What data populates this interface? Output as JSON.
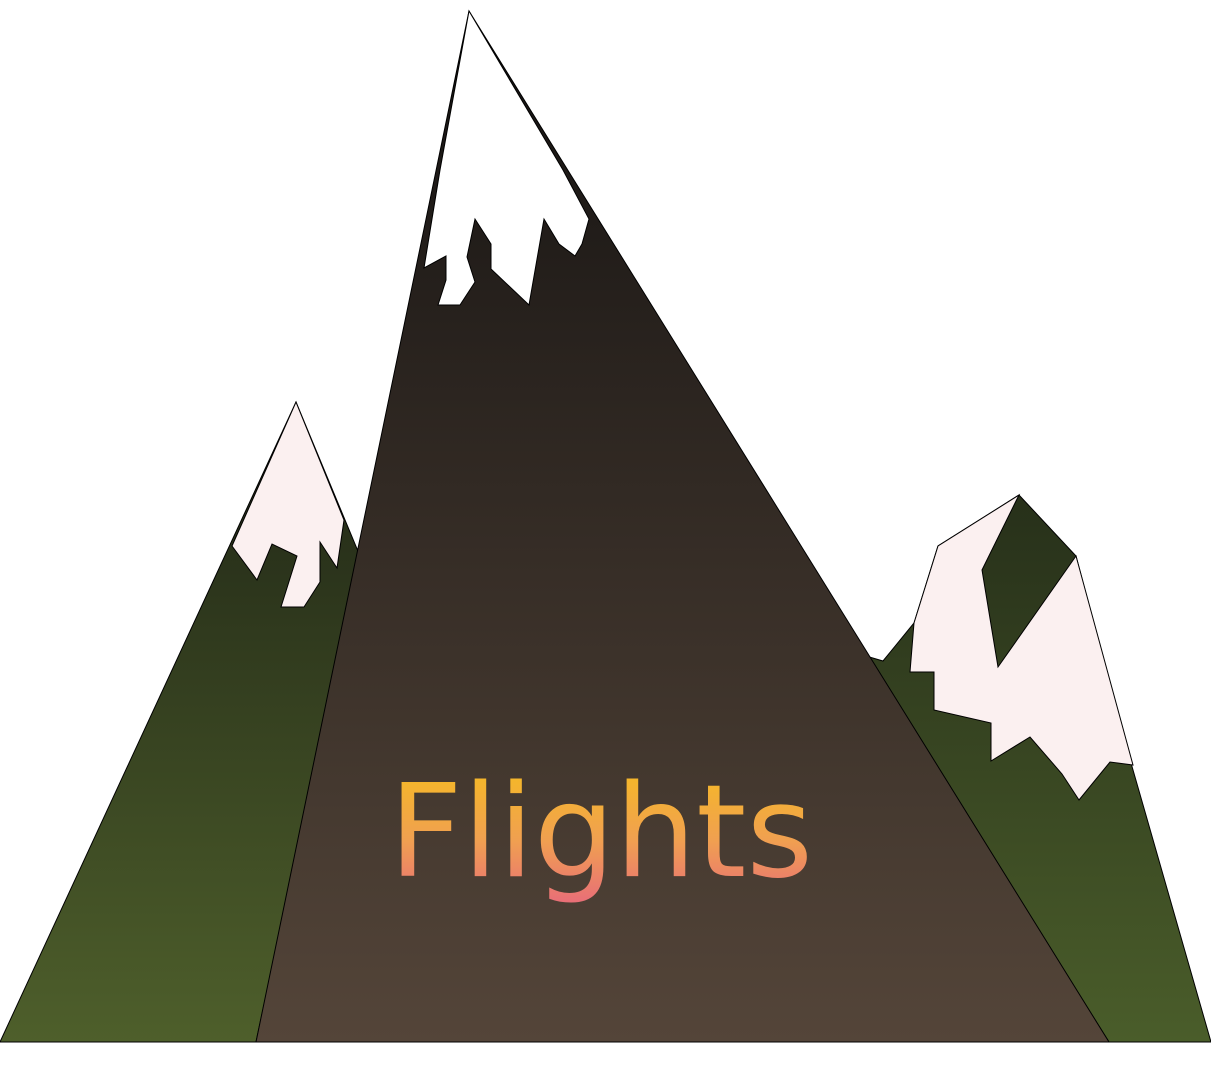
{
  "title": "Flights",
  "colors": {
    "background": "#ffffff",
    "left_mountain_top": "#1f2516",
    "left_mountain_bottom": "#4e5f2b",
    "center_mountain_top": "#141211",
    "center_mountain_bottom": "#544539",
    "right_mountain_top": "#27301a",
    "right_mountain_bottom": "#4a5d2a",
    "snow_white": "#ffffff",
    "snow_pink": "#fbf0f0",
    "outline": "#000000",
    "title_gradient_top": "#f6bd1f",
    "title_gradient_bottom": "#e86b7a"
  }
}
